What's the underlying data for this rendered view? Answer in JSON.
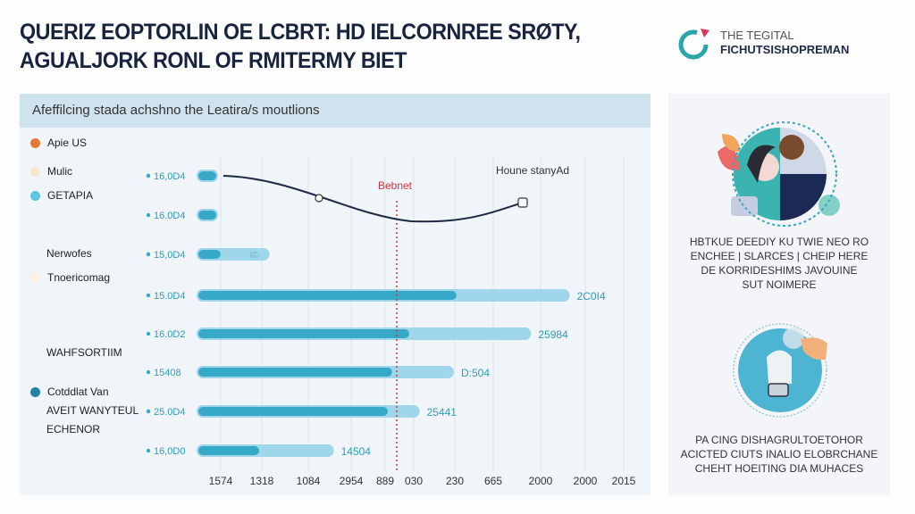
{
  "header": {
    "title_line1": "QUERIZ EOPTORLIN OE LCBRT: HD IELCORNREE SRØTY,",
    "title_line2": "AGUALJORK RONL OF RMITERMY BIET",
    "logo_line1": "THE TEGITAL",
    "logo_line2": "FICHUTSISHOPREMAN",
    "logo_colors": [
      "#2aa6a8",
      "#d9345a"
    ]
  },
  "panel": {
    "heading": "Afeffilcing stada achshno the Leatira/s moutlions",
    "legend": [
      {
        "label": "Apie US",
        "color": "#e07b3a"
      },
      {
        "label": "Mulic",
        "color": "#f7e7cf"
      },
      {
        "label": "GETAPIA",
        "color": "#5cc6dc"
      },
      {
        "label": "Nerwofes",
        "color": ""
      },
      {
        "label": "Tnoericomag",
        "color": "#fbf0e2"
      },
      {
        "label": "WAHFSORTIIM",
        "color": ""
      },
      {
        "label": "Cotddlat Van",
        "color": "#2482a8"
      },
      {
        "label": "AVEIT WANYTEUL",
        "color": ""
      },
      {
        "label": "ECHENOR",
        "color": ""
      }
    ]
  },
  "chart_data": {
    "type": "bar",
    "orientation": "horizontal",
    "categories": [
      "16,0D4",
      "16.0D4",
      "15,0D4",
      "15.0D4",
      "16.0D2",
      "15408",
      "25.0D4",
      "16,0D0"
    ],
    "series": [
      {
        "values": [
          5,
          5,
          6,
          61,
          50,
          46,
          45,
          15
        ]
      },
      {
        "values": [
          5,
          5,
          17,
          87,
          78,
          60,
          52,
          32
        ]
      }
    ],
    "value_labels": [
      "",
      "",
      "",
      "2C0I4",
      "25984",
      "D:504",
      "25441",
      "14504"
    ],
    "inner_labels": [
      "",
      "",
      "I©",
      "",
      "",
      "",
      "",
      ""
    ],
    "x_ticks": [
      "1574",
      "1318",
      "1084",
      "2954",
      "889",
      "030",
      "230",
      "665",
      "2000",
      "2000",
      "2015"
    ],
    "xlim": [
      0,
      100
    ],
    "grid": true,
    "reference_line": {
      "label": "Bebnet",
      "value": 50,
      "color": "#d2343e"
    },
    "trend_label": "Houne stanyAd",
    "colors": {
      "fill": "#37a9c8",
      "track": "#9fd6ea",
      "line": "#1d2a44"
    }
  },
  "sidebar": {
    "text1": [
      "HBTKUE DEEDIY KU TWIE NEO RO",
      "ENCHEE | SLARCES | CHEIP HERE",
      "DE KORRIDESHIMS JAVOUINE",
      "SUT NOIMERE"
    ],
    "text2": [
      "PA CING DISHAGRULTOETOHOR",
      "ACICTED CIUTS INALIO ELOBRCHANE",
      "CHEHT HOEITING DIA MUHACES"
    ]
  }
}
